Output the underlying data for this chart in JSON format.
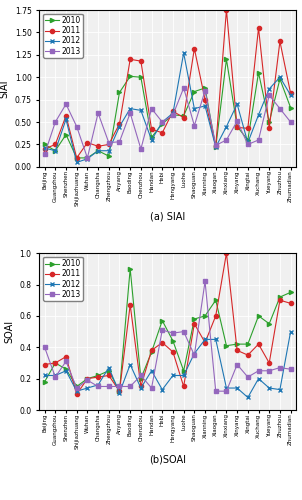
{
  "cities": [
    "Beijing",
    "Guangzhou",
    "Shenzhen",
    "Shijiazhuang",
    "Wuhan",
    "Changsha",
    "Zhengzhou",
    "Anyang",
    "Baoding",
    "Chenzhou",
    "Handan",
    "Hebi",
    "Hengyang",
    "Luohe",
    "Shaoguan",
    "Xianning",
    "Xiaogan",
    "Xinxiang",
    "Xinyang",
    "Xingtai",
    "Xuchang",
    "Yueyang",
    "Zhuzhou",
    "Zhumadian"
  ],
  "siai": {
    "2010": [
      0.25,
      0.18,
      0.36,
      0.1,
      0.1,
      0.18,
      0.12,
      0.83,
      1.01,
      1.0,
      0.33,
      0.48,
      0.58,
      0.57,
      0.84,
      0.88,
      0.22,
      1.2,
      0.45,
      0.3,
      1.05,
      0.5,
      0.98,
      0.66
    ],
    "2011": [
      0.2,
      0.25,
      0.57,
      0.1,
      0.27,
      0.23,
      0.25,
      0.48,
      1.2,
      1.18,
      0.42,
      0.38,
      0.62,
      0.55,
      1.32,
      0.75,
      0.23,
      1.75,
      0.44,
      0.43,
      1.55,
      0.43,
      1.4,
      0.82
    ],
    "2012": [
      0.21,
      0.18,
      0.53,
      0.05,
      0.09,
      0.18,
      0.18,
      0.45,
      0.65,
      0.63,
      0.3,
      0.5,
      0.6,
      1.27,
      0.65,
      0.68,
      0.22,
      0.45,
      0.7,
      0.27,
      0.58,
      0.87,
      1.0,
      0.8
    ],
    "2013": [
      0.14,
      0.5,
      0.7,
      0.45,
      0.1,
      0.6,
      0.27,
      0.28,
      0.6,
      0.2,
      0.65,
      0.5,
      0.58,
      0.88,
      0.46,
      0.85,
      0.24,
      0.3,
      0.51,
      0.25,
      0.3,
      0.8,
      0.65,
      0.5
    ]
  },
  "soai": {
    "2010": [
      0.18,
      0.3,
      0.26,
      0.15,
      0.2,
      0.22,
      0.25,
      0.12,
      0.9,
      0.2,
      0.37,
      0.57,
      0.44,
      0.25,
      0.58,
      0.6,
      0.7,
      0.41,
      0.42,
      0.42,
      0.6,
      0.55,
      0.72,
      0.75
    ],
    "2011": [
      0.29,
      0.3,
      0.34,
      0.1,
      0.2,
      0.21,
      0.22,
      0.12,
      0.67,
      0.15,
      0.38,
      0.43,
      0.37,
      0.15,
      0.55,
      0.43,
      0.6,
      1.0,
      0.38,
      0.35,
      0.42,
      0.3,
      0.7,
      0.68
    ],
    "2012": [
      0.22,
      0.22,
      0.25,
      0.12,
      0.14,
      0.16,
      0.27,
      0.11,
      0.29,
      0.14,
      0.25,
      0.13,
      0.22,
      0.22,
      0.36,
      0.45,
      0.45,
      0.14,
      0.14,
      0.08,
      0.2,
      0.14,
      0.13,
      0.5
    ],
    "2013": [
      0.4,
      0.21,
      0.31,
      0.14,
      0.19,
      0.15,
      0.15,
      0.15,
      0.15,
      0.22,
      0.14,
      0.51,
      0.49,
      0.5,
      0.35,
      0.82,
      0.12,
      0.12,
      0.29,
      0.21,
      0.25,
      0.25,
      0.27,
      0.26
    ]
  },
  "colors": {
    "2010": "#2ca02c",
    "2011": "#d62728",
    "2012": "#1f77b4",
    "2013": "#9467bd"
  },
  "markers": {
    "2010": ">",
    "2011": "o",
    "2012": "x",
    "2013": "s"
  },
  "siai_ylim": [
    0.0,
    1.75
  ],
  "soai_ylim": [
    0.0,
    1.0
  ],
  "siai_yticks": [
    0.0,
    0.25,
    0.5,
    0.75,
    1.0,
    1.25,
    1.5,
    1.75
  ],
  "soai_yticks": [
    0.0,
    0.2,
    0.4,
    0.6,
    0.8,
    1.0
  ],
  "title_a": "(a) SIAI",
  "title_b": "(b)SOAI",
  "ylabel_a": "SIAI",
  "ylabel_b": "SOAI",
  "years": [
    "2010",
    "2011",
    "2012",
    "2013"
  ],
  "bg_color": "#f0f0f0"
}
